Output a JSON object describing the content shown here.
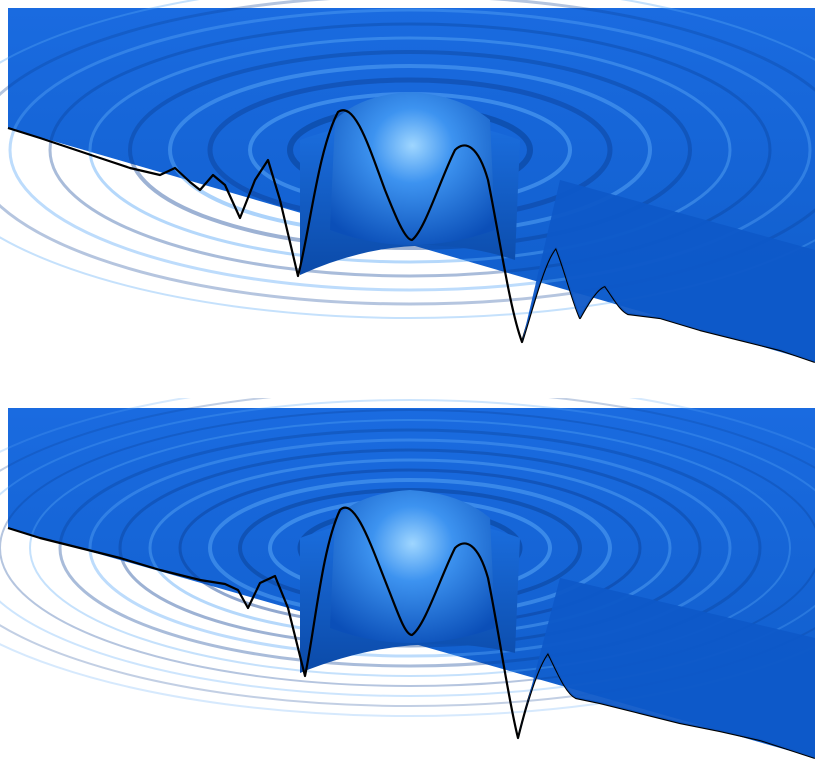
{
  "figure": {
    "panels": [
      {
        "id": "top",
        "surface": "radial-ripple-surface",
        "color": "#1565d8",
        "highlight": "#7fc4ff",
        "shadow": "#06306e",
        "ripple_rings": 10
      },
      {
        "id": "bottom",
        "surface": "radial-ripple-surface",
        "color": "#1565d8",
        "highlight": "#7fc4ff",
        "shadow": "#06306e",
        "ripple_rings": 14
      }
    ]
  }
}
